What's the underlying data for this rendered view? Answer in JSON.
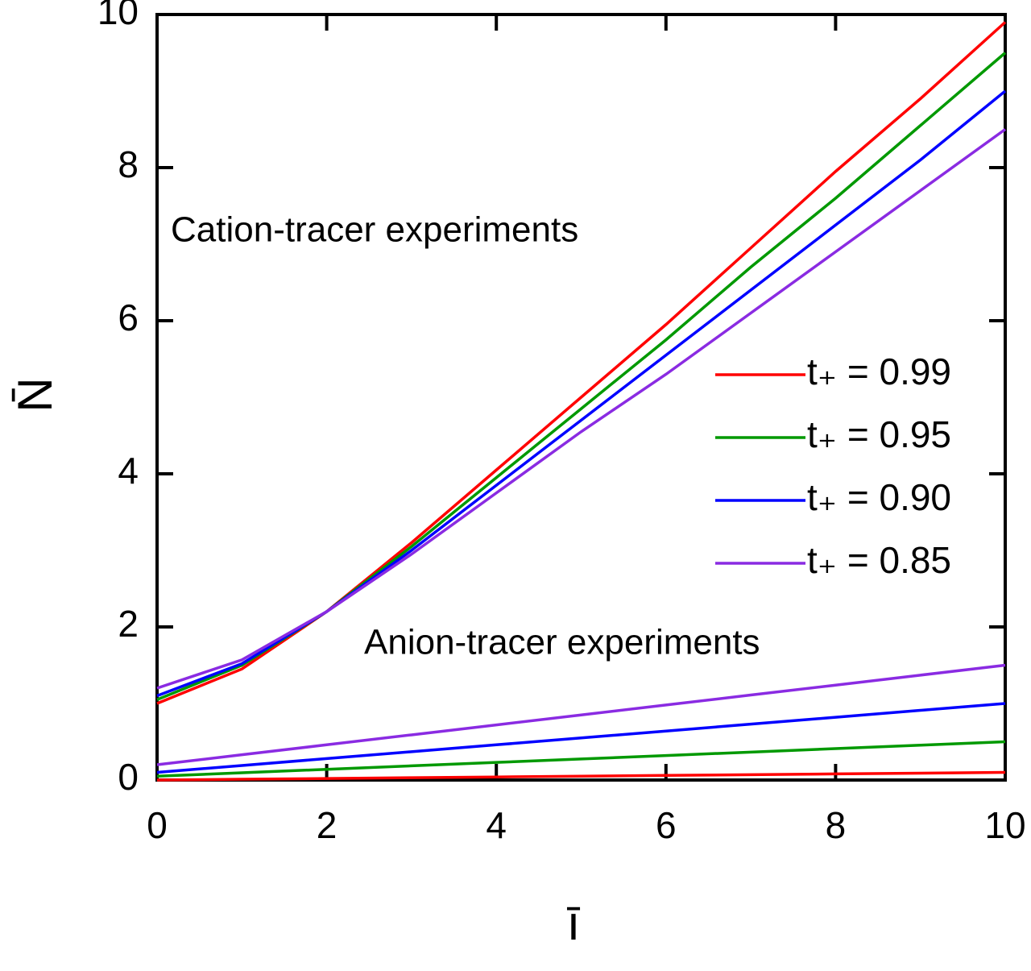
{
  "chart_data": {
    "type": "line",
    "xlabel": "ī",
    "ylabel": "N̄",
    "annotations": [
      "Cation-tracer experiments",
      "Anion-tracer experiments"
    ],
    "x": [
      0,
      1,
      2,
      3,
      4,
      5,
      6,
      7,
      8,
      9,
      10
    ],
    "series": [
      {
        "name": "t₊ = 0.99",
        "color": "#ff0000",
        "values": [
          1.0,
          1.45,
          2.2,
          3.1,
          4.05,
          5.0,
          5.95,
          6.95,
          7.95,
          8.9,
          9.9
        ]
      },
      {
        "name": "t₊ = 0.95",
        "color": "#009900",
        "values": [
          1.05,
          1.5,
          2.2,
          3.05,
          3.95,
          4.85,
          5.75,
          6.7,
          7.6,
          8.55,
          9.5
        ]
      },
      {
        "name": "t₊ = 0.90",
        "color": "#0000ff",
        "values": [
          1.1,
          1.52,
          2.2,
          3.0,
          3.85,
          4.7,
          5.55,
          6.4,
          7.25,
          8.1,
          9.0
        ]
      },
      {
        "name": "t₊ = 0.85",
        "color": "#8a2be2",
        "values": [
          1.2,
          1.57,
          2.2,
          2.95,
          3.75,
          4.55,
          5.3,
          6.1,
          6.9,
          7.7,
          8.5
        ]
      },
      {
        "color": "#ff0000",
        "values": [
          0.0,
          0.01,
          0.02,
          0.03,
          0.04,
          0.05,
          0.06,
          0.07,
          0.08,
          0.09,
          0.1
        ]
      },
      {
        "color": "#009900",
        "values": [
          0.05,
          0.095,
          0.14,
          0.185,
          0.23,
          0.275,
          0.32,
          0.365,
          0.41,
          0.455,
          0.5
        ]
      },
      {
        "color": "#0000ff",
        "values": [
          0.1,
          0.19,
          0.28,
          0.37,
          0.46,
          0.55,
          0.64,
          0.73,
          0.82,
          0.91,
          1.0
        ]
      },
      {
        "color": "#8a2be2",
        "values": [
          0.2,
          0.33,
          0.46,
          0.59,
          0.72,
          0.85,
          0.98,
          1.11,
          1.24,
          1.37,
          1.5
        ]
      }
    ],
    "xlim": [
      0,
      10
    ],
    "ylim": [
      0,
      10
    ],
    "xticks": [
      0,
      2,
      4,
      6,
      8,
      10
    ],
    "yticks": [
      0,
      2,
      4,
      6,
      8,
      10
    ],
    "grid": false
  }
}
